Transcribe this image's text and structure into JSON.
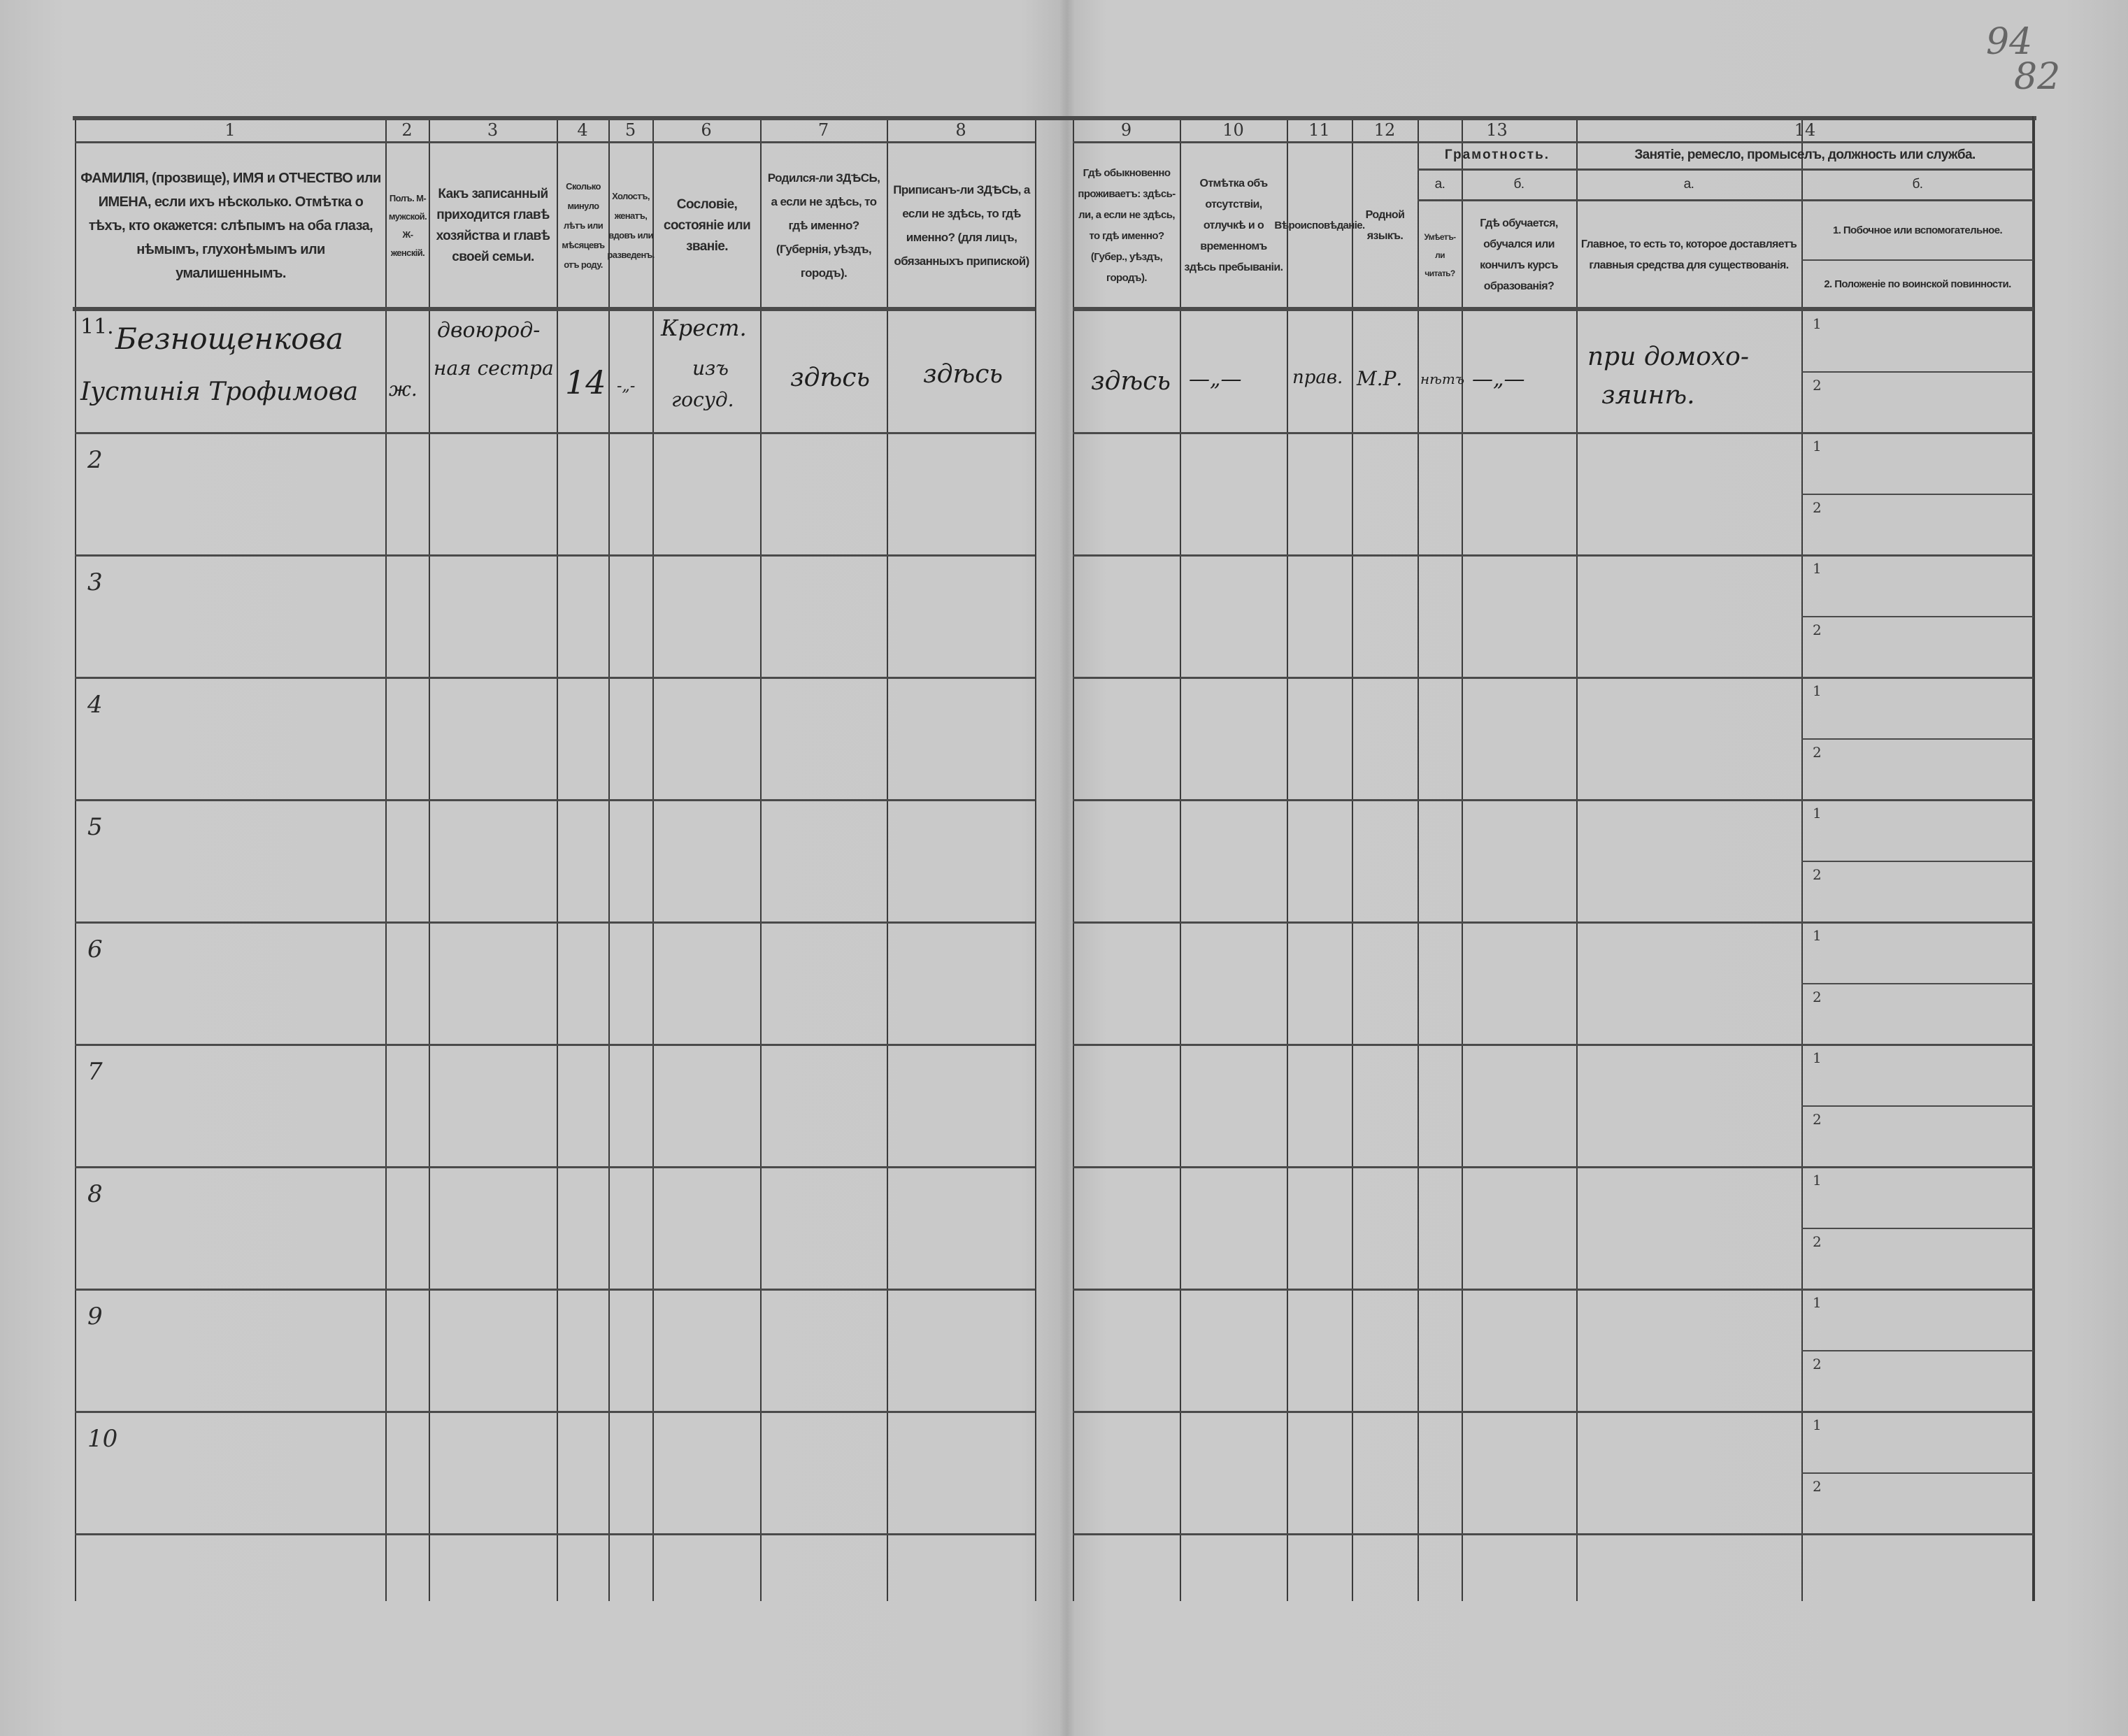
{
  "page_numbers": {
    "top": "94",
    "bottom": "82"
  },
  "column_numbers": [
    "1",
    "2",
    "3",
    "4",
    "5",
    "6",
    "7",
    "8",
    "9",
    "10",
    "11",
    "12",
    "13",
    "14"
  ],
  "headers": {
    "col1": "ФАМИЛІЯ, (прозвище), ИМЯ и ОТЧЕСТВО или ИМЕНА, если ихъ нѣсколько. Отмѣтка о тѣхъ, кто окажется: слѣпымъ на оба глаза, нѣмымъ, глухонѣмымъ или умалишеннымъ.",
    "col2": "Полъ. М-мужской. Ж-женскій.",
    "col3": "Какъ записанный приходится главѣ хозяйства и главѣ своей семьи.",
    "col4": "Сколько минуло лѣтъ или мѣсяцевъ отъ роду.",
    "col5": "Холостъ, женатъ, вдовъ или разведенъ.",
    "col6": "Сословіе, состояніе или званіе.",
    "col7": "Родился-ли ЗДѢСЬ, а если не здѣсь, то гдѣ именно? (Губернія, уѣздъ, городъ).",
    "col8": "Приписанъ-ли ЗДѢСЬ, а если не здѣсь, то гдѣ именно? (для лицъ, обязанныхъ припиской)",
    "col9": "Гдѣ обыкновенно проживаетъ: здѣсь-ли, а если не здѣсь, то гдѣ именно? (Губер., уѣздъ, городъ).",
    "col10": "Отмѣтка объ отсутствіи, отлучкѣ и о временномъ здѣсь пребываніи.",
    "col11": "Вѣроисповѣданіе.",
    "col12": "Родной языкъ.",
    "col13_group": "Грамотность.",
    "col13a_letter": "а.",
    "col13b_letter": "б.",
    "col13a": "Умѣетъ-ли читать?",
    "col13b": "Гдѣ обучается, обучался или кончилъ курсъ образованія?",
    "col14_group": "Занятіе, ремесло, промыселъ, должность или служба.",
    "col14a_letter": "а.",
    "col14b_letter": "б.",
    "col14a": "Главное, то есть то, которое доставляетъ главныя средства для существованія.",
    "col14b_1": "1. Побочное или вспомогательное.",
    "col14b_2": "2. Положеніе по воинской повинности."
  },
  "row_sub_labels": [
    "1",
    "2"
  ],
  "entry": {
    "row_number": "11.",
    "surname": "Безнощенкова",
    "name": "Іустинія Трофимова",
    "sex": "ж.",
    "relation_line1": "двоюрод-",
    "relation_line2": "ная сестра",
    "age": "14",
    "marital": "-„-",
    "estate_line1": "Крест.",
    "estate_line2": "изъ",
    "estate_line3": "госуд.",
    "born": "здѣсь",
    "registered": "здѣсь",
    "resides": "здѣсь",
    "absence": "—„—",
    "religion": "прав.",
    "language": "М.Р.",
    "can_read": "нѣтъ",
    "education": "—„—",
    "occupation_line1": "при домохо-",
    "occupation_line2": "зяинѣ."
  },
  "empty_row_numbers": [
    "2",
    "3",
    "4",
    "5",
    "6",
    "7",
    "8",
    "9",
    "10"
  ]
}
